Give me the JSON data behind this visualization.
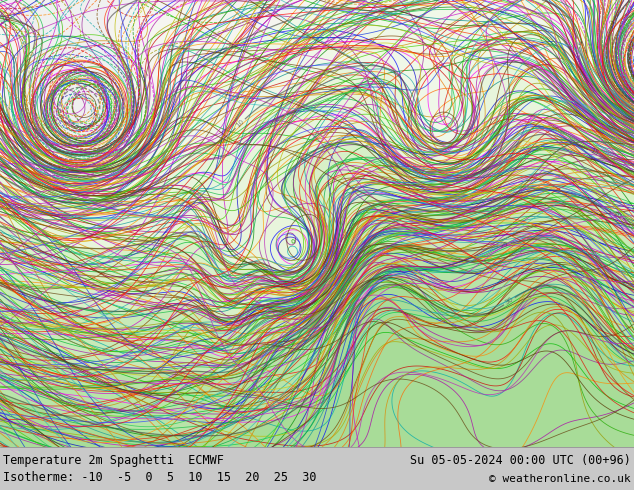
{
  "title_left": "Temperature 2m Spaghetti  ECMWF",
  "title_right": "Su 05-05-2024 00:00 UTC (00+96)",
  "subtitle": "Isotherme: -10  -5  0  5  10  15  20  25  30",
  "copyright": "© weatheronline.co.uk",
  "bg_color": "#c8c8c8",
  "map_bg_color": "#f2f2f2",
  "ocean_color": "#e8e8e8",
  "land_color": "#f5f5f5",
  "title_fontsize": 8.5,
  "subtitle_fontsize": 8.5,
  "copyright_fontsize": 8,
  "isotherms": [
    -10,
    -5,
    0,
    5,
    10,
    15,
    20,
    25,
    30
  ],
  "num_members": 51,
  "seed": 42,
  "figsize": [
    6.34,
    4.9
  ],
  "dpi": 100,
  "ensemble_colors": [
    "#ff0000",
    "#00bb00",
    "#0000ff",
    "#ff8800",
    "#aa00aa",
    "#00aaaa",
    "#cc8800",
    "#ff00ff",
    "#00cc44",
    "#884400",
    "#cc0000",
    "#008800",
    "#0000cc",
    "#ff6600",
    "#880088",
    "#008888",
    "#aaaa00",
    "#cc00cc",
    "#00aa44",
    "#663300",
    "#ee2200",
    "#22aa00",
    "#2222cc",
    "#ee7700",
    "#992299",
    "#119999",
    "#999900",
    "#aa00aa",
    "#00bb33",
    "#774400",
    "#dd1100",
    "#33bb00",
    "#1133dd",
    "#dd8800",
    "#aa11aa",
    "#22aaaa",
    "#bbbb00",
    "#bb00bb",
    "#11bb44",
    "#553300",
    "#ff3300",
    "#44cc00",
    "#3344ff",
    "#ff9900",
    "#bb22bb",
    "#33bbbb",
    "#cccc11",
    "#cc11cc",
    "#22cc55",
    "#664411"
  ]
}
